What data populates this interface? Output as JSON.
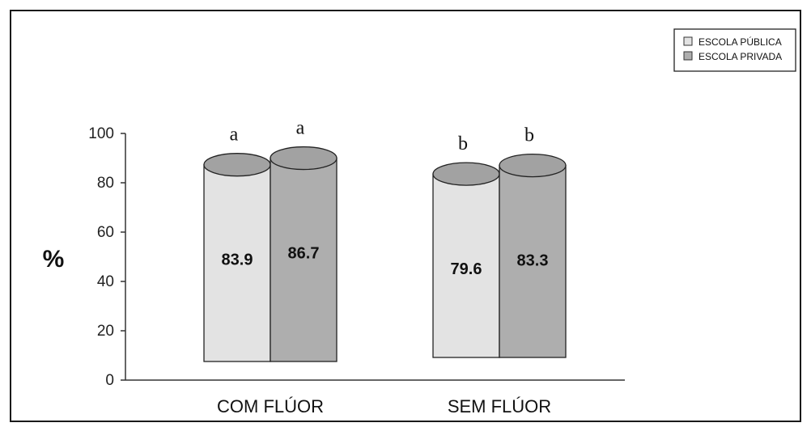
{
  "chart_data": {
    "type": "bar",
    "style": "3d-cylinder",
    "categories": [
      "COM FLÚOR",
      "SEM FLÚOR"
    ],
    "series": [
      {
        "name": "ESCOLA PÚBLICA",
        "color": "#e3e3e3",
        "values": [
          83.9,
          79.6
        ],
        "significance": [
          "a",
          "b"
        ]
      },
      {
        "name": "ESCOLA PRIVADA",
        "color": "#aeaeae",
        "values": [
          86.7,
          83.3
        ],
        "significance": [
          "a",
          "b"
        ]
      }
    ],
    "value_labels": [
      [
        "83.9",
        "79.6"
      ],
      [
        "86.7",
        "83.3"
      ]
    ],
    "ylabel": "%",
    "yticks": [
      0,
      20,
      40,
      60,
      80,
      100
    ],
    "ylim": [
      0,
      100
    ],
    "grid": false,
    "legend_position": "top-right"
  }
}
